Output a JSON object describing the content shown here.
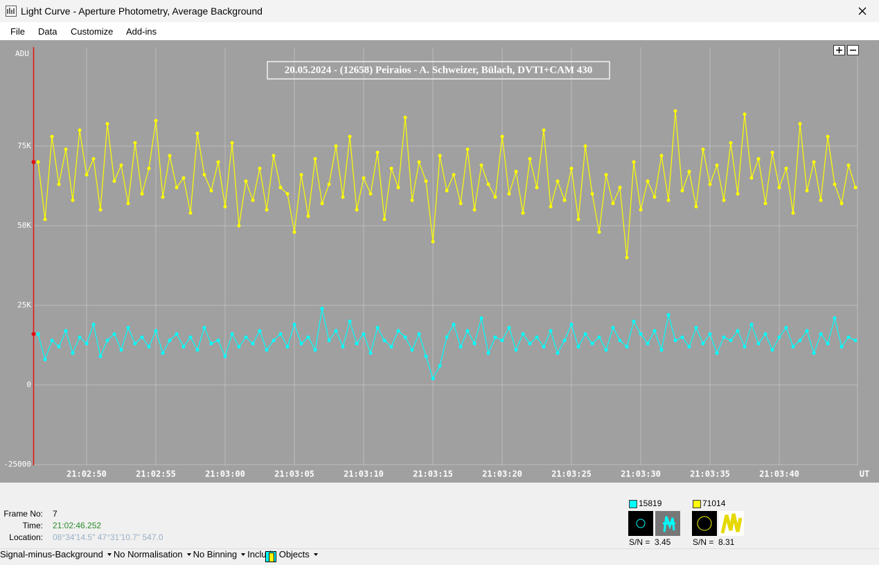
{
  "window": {
    "title": "Light Curve - Aperture Photometry, Average Background"
  },
  "menu": [
    "File",
    "Data",
    "Customize",
    "Add-ins"
  ],
  "chart_data": {
    "type": "line",
    "title": "20.05.2024 - (12658) Peiraios - A. Schweizer, Bülach, DVTI+CAM 430",
    "y_label": "ADU",
    "x_label": "UT",
    "categories": [
      null,
      null,
      null,
      null,
      null,
      null,
      null,
      "21:02:50",
      null,
      null,
      null,
      null,
      null,
      null,
      null,
      null,
      null,
      "21:02:55",
      null,
      null,
      null,
      null,
      null,
      null,
      null,
      null,
      null,
      "21:03:00",
      null,
      null,
      null,
      null,
      null,
      null,
      null,
      null,
      null,
      "21:03:05",
      null,
      null,
      null,
      null,
      null,
      null,
      null,
      null,
      null,
      "21:03:10",
      null,
      null,
      null,
      null,
      null,
      null,
      null,
      null,
      null,
      "21:03:15",
      null,
      null,
      null,
      null,
      null,
      null,
      null,
      null,
      null,
      "21:03:20",
      null,
      null,
      null,
      null,
      null,
      null,
      null,
      null,
      null,
      "21:03:25",
      null,
      null,
      null,
      null,
      null,
      null,
      null,
      null,
      null,
      "21:03:30",
      null,
      null,
      null,
      null,
      null,
      null,
      null,
      null,
      null,
      "21:03:35",
      null,
      null,
      null,
      null,
      null,
      null,
      null,
      null,
      null,
      "21:03:40",
      null,
      null,
      null,
      null,
      null,
      null,
      null,
      null,
      null,
      null,
      null
    ],
    "series": [
      {
        "name": "15819",
        "color": "#00ffff",
        "values": [
          16000,
          8000,
          14000,
          12000,
          17000,
          10000,
          15000,
          13000,
          19000,
          9000,
          14000,
          16000,
          11000,
          18000,
          13000,
          15000,
          12000,
          17000,
          10000,
          14000,
          16000,
          12000,
          15000,
          11000,
          18000,
          13000,
          14000,
          9000,
          16000,
          12000,
          15000,
          13000,
          17000,
          11000,
          14000,
          16000,
          12000,
          19000,
          13000,
          15000,
          11000,
          24000,
          14000,
          17000,
          12000,
          20000,
          13000,
          16000,
          10000,
          18000,
          14000,
          12000,
          17000,
          15000,
          11000,
          16000,
          9000,
          2000,
          6000,
          15000,
          19000,
          12000,
          17000,
          13000,
          21000,
          10000,
          15000,
          14000,
          18000,
          11000,
          16000,
          13000,
          15000,
          12000,
          17000,
          10000,
          14000,
          19000,
          12000,
          16000,
          13000,
          15000,
          11000,
          18000,
          14000,
          12000,
          20000,
          16000,
          13000,
          17000,
          11000,
          22000,
          14000,
          15000,
          12000,
          18000,
          13000,
          16000,
          10000,
          15000,
          14000,
          17000,
          12000,
          19000,
          13000,
          16000,
          11000,
          15000,
          18000,
          12000,
          14000,
          17000,
          10000,
          16000,
          13000,
          21000,
          12000,
          15000,
          14000
        ]
      },
      {
        "name": "71014",
        "color": "#ffff00",
        "values": [
          70000,
          52000,
          78000,
          63000,
          74000,
          58000,
          80000,
          66000,
          71000,
          55000,
          82000,
          64000,
          69000,
          57000,
          76000,
          60000,
          68000,
          83000,
          59000,
          72000,
          62000,
          65000,
          54000,
          79000,
          66000,
          61000,
          70000,
          56000,
          76000,
          50000,
          64000,
          58000,
          68000,
          55000,
          72000,
          62000,
          60000,
          48000,
          66000,
          53000,
          71000,
          57000,
          63000,
          75000,
          59000,
          78000,
          55000,
          65000,
          60000,
          73000,
          52000,
          68000,
          62000,
          84000,
          58000,
          70000,
          64000,
          45000,
          72000,
          61000,
          66000,
          57000,
          74000,
          55000,
          69000,
          63000,
          59000,
          78000,
          60000,
          67000,
          54000,
          71000,
          62000,
          80000,
          56000,
          64000,
          58000,
          68000,
          52000,
          75000,
          60000,
          48000,
          66000,
          57000,
          62000,
          40000,
          70000,
          55000,
          64000,
          59000,
          72000,
          58000,
          86000,
          61000,
          67000,
          56000,
          74000,
          63000,
          69000,
          58000,
          76000,
          60000,
          85000,
          65000,
          71000,
          57000,
          73000,
          62000,
          68000,
          54000,
          82000,
          61000,
          70000,
          58000,
          78000,
          63000,
          57000,
          69000,
          62000
        ]
      }
    ],
    "ylim": [
      -30000,
      106000
    ],
    "yticks": [
      {
        "value": 75000,
        "label": "75K"
      },
      {
        "value": 50000,
        "label": "50K"
      },
      {
        "value": 25000,
        "label": "25K"
      },
      0,
      -25000
    ],
    "grid": true,
    "markers": true
  },
  "status": {
    "frame_label": "Frame No:",
    "frame": 7,
    "time_label": "Time:",
    "time": "21:02:46.252",
    "location_label": "Location:",
    "location": "08°34'14.5\" 47°31'10.7\" 547.0"
  },
  "snr_label": "S/N =",
  "snr": [
    3.45,
    8.31
  ],
  "toolbar": [
    "Signal-minus-Background",
    "No Normalisation",
    "No Binning",
    "Include Objects"
  ]
}
